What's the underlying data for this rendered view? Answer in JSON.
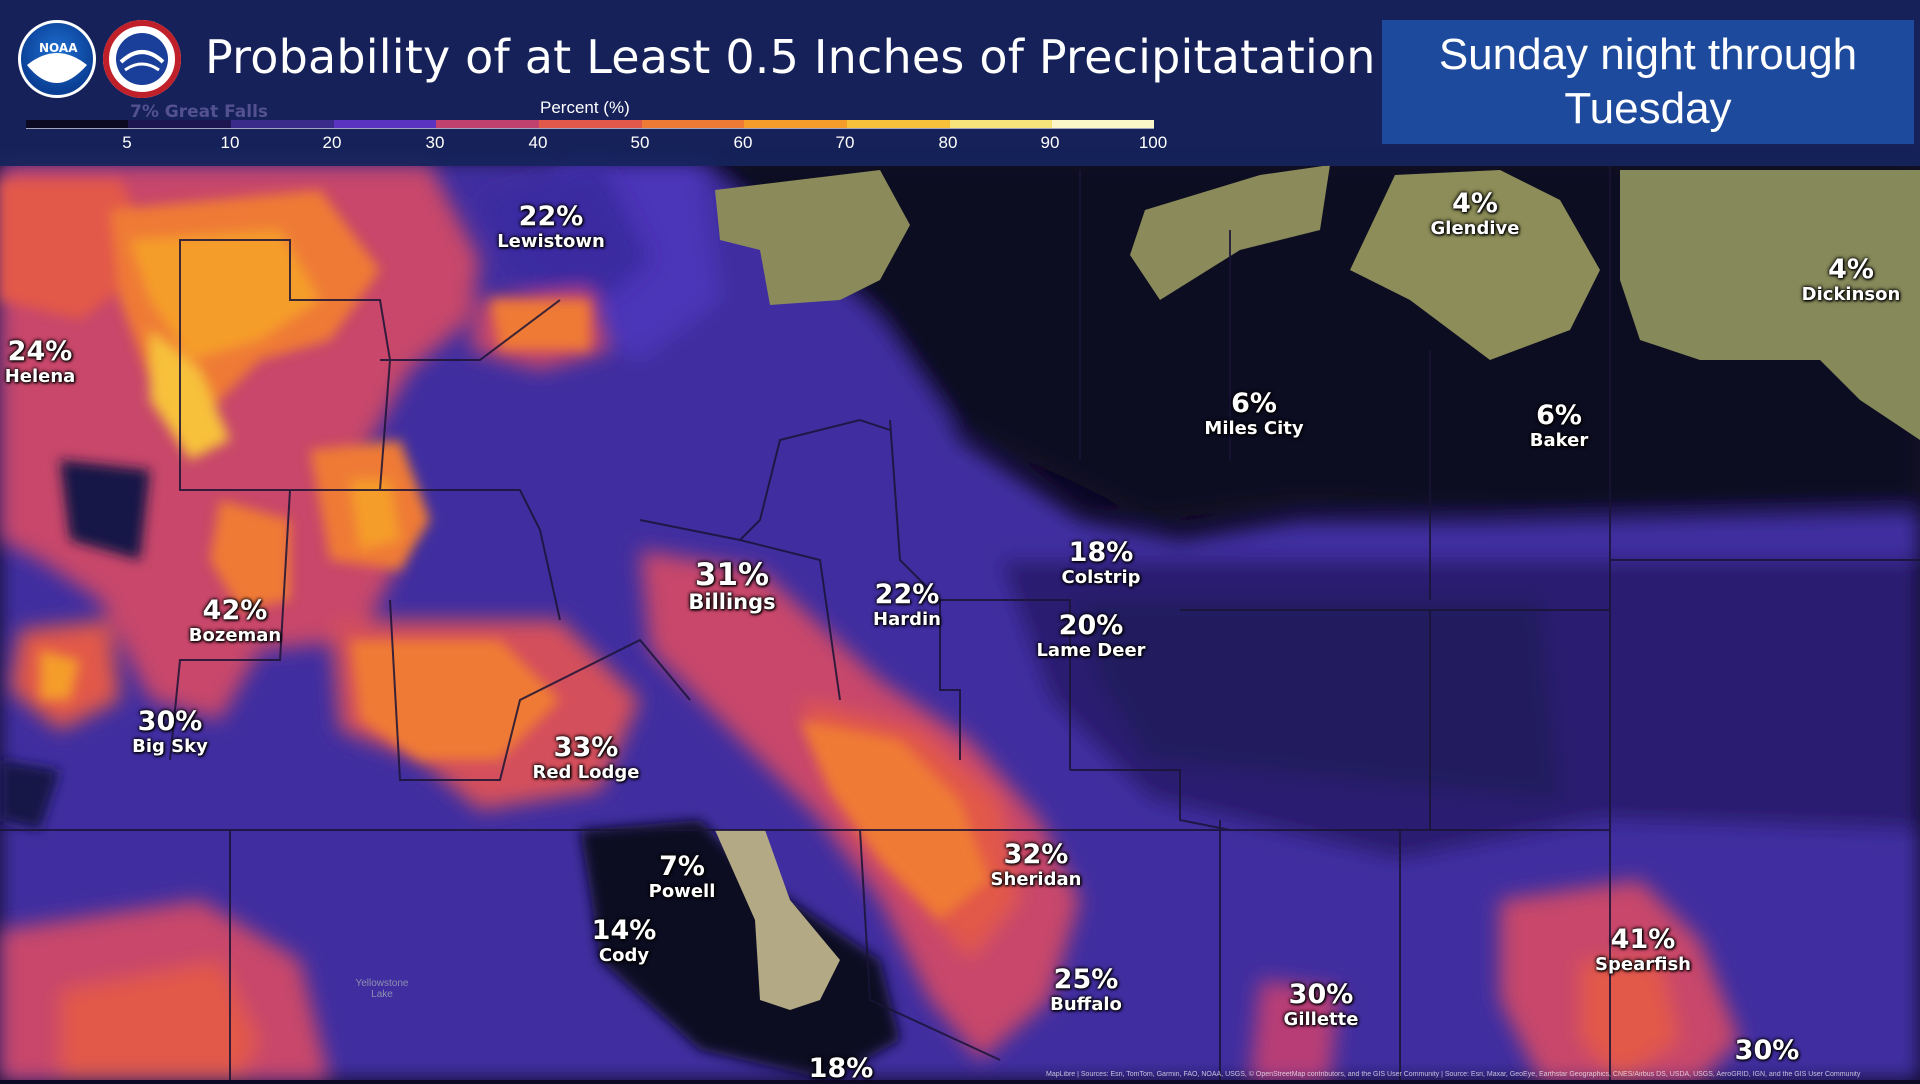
{
  "header": {
    "title": "Probability of at Least 0.5 Inches of Precipitatation",
    "subtitle": "Sunday night through Tuesday",
    "noaa_logo_text": "NOAA",
    "nws_logo_text": "NATIONAL WEATHER SERVICE"
  },
  "legend": {
    "title": "Percent (%)",
    "ticks": [
      "5",
      "10",
      "20",
      "30",
      "40",
      "50",
      "60",
      "70",
      "80",
      "90",
      "100"
    ],
    "colors": [
      "#0b0a22",
      "#1e1650",
      "#3a2a8a",
      "#5a34c0",
      "#c0406e",
      "#e2584a",
      "#ef7a35",
      "#f59d2a",
      "#f7c13a",
      "#f7e47a",
      "#fbf7c8"
    ]
  },
  "cities": [
    {
      "pct": "22%",
      "name": "Lewistown"
    },
    {
      "pct": "24%",
      "name": "Helena"
    },
    {
      "pct": "42%",
      "name": "Bozeman"
    },
    {
      "pct": "30%",
      "name": "Big Sky"
    },
    {
      "pct": "31%",
      "name": "Billings"
    },
    {
      "pct": "22%",
      "name": "Hardin"
    },
    {
      "pct": "18%",
      "name": "Colstrip"
    },
    {
      "pct": "20%",
      "name": "Lame Deer"
    },
    {
      "pct": "6%",
      "name": "Miles City"
    },
    {
      "pct": "6%",
      "name": "Baker"
    },
    {
      "pct": "4%",
      "name": "Glendive"
    },
    {
      "pct": "4%",
      "name": "Dickinson"
    },
    {
      "pct": "33%",
      "name": "Red Lodge"
    },
    {
      "pct": "7%",
      "name": "Powell"
    },
    {
      "pct": "14%",
      "name": "Cody"
    },
    {
      "pct": "32%",
      "name": "Sheridan"
    },
    {
      "pct": "25%",
      "name": "Buffalo"
    },
    {
      "pct": "30%",
      "name": "Gillette"
    },
    {
      "pct": "41%",
      "name": "Spearfish"
    },
    {
      "pct": "30%",
      "name": ""
    },
    {
      "pct": "18%",
      "name": ""
    }
  ],
  "background_label": "7% Great Falls",
  "map_label": "Yellowstone Lake",
  "attribution": "MapLibre | Sources: Esri, TomTom, Garmin, FAO, NOAA, USGS, © OpenStreetMap contributors, and the GIS User Community | Source: Esri, Maxar, GeoEye, Earthstar Geographics, CNES/Airbus DS, USDA, USGS, AeroGRID, IGN, and the GIS User Community"
}
